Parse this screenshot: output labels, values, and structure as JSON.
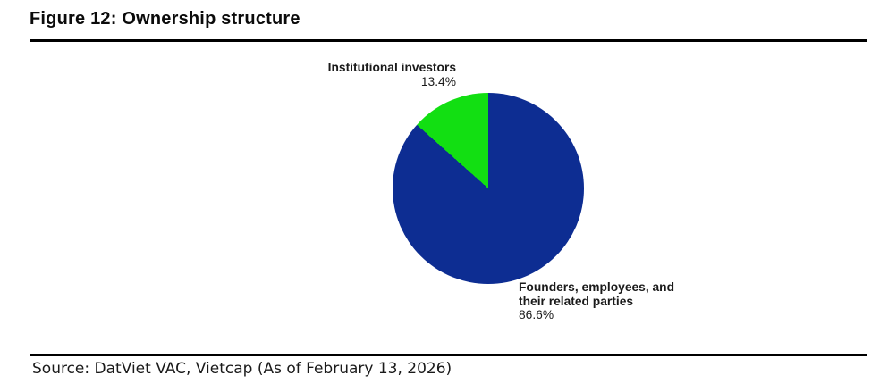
{
  "page": {
    "background": "#ffffff"
  },
  "header": {
    "title": "Figure 12: Ownership structure"
  },
  "footer": {
    "source": "Source: DatViet VAC, Vietcap (As of February 13, 2026)"
  },
  "chart_data": {
    "type": "pie",
    "title": "Ownership structure",
    "direction": "clockwise",
    "start_angle_deg": 0,
    "legend_position": "none",
    "slices": [
      {
        "label": "Founders, employees, and their related parties",
        "value": 86.6,
        "pct_label": "86.6%",
        "color": "#0D2D92"
      },
      {
        "label": "Institutional investors",
        "value": 13.4,
        "pct_label": "13.4%",
        "color": "#12DF12"
      }
    ],
    "callouts": {
      "institutional": {
        "line1": "Institutional investors",
        "value": "13.4%"
      },
      "founders": {
        "line1": "Founders, employees, and",
        "line2": "their related parties",
        "value": "86.6%"
      }
    }
  }
}
